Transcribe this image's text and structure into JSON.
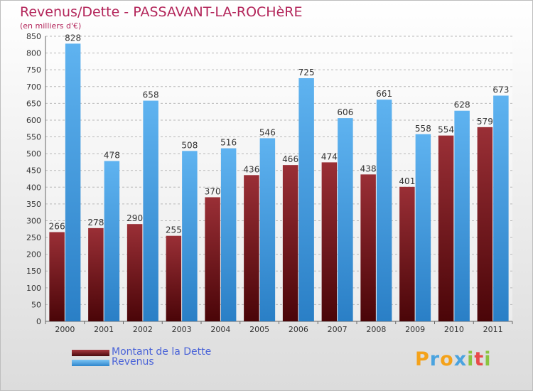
{
  "header": {
    "title": "Revenus/Dette - PASSAVANT-LA-ROCHèRE",
    "subtitle": "(en milliers d'€)"
  },
  "chart_data": {
    "type": "bar",
    "title": "Revenus/Dette - PASSAVANT-LA-ROCHèRE",
    "subtitle": "(en milliers d'€)",
    "categories": [
      "2000",
      "2001",
      "2002",
      "2003",
      "2004",
      "2005",
      "2006",
      "2007",
      "2008",
      "2009",
      "2010",
      "2011"
    ],
    "series": [
      {
        "name": "Montant de la Dette",
        "color": "#7b1a1f",
        "values": [
          266,
          278,
          290,
          255,
          370,
          436,
          466,
          474,
          438,
          401,
          554,
          579
        ]
      },
      {
        "name": "Revenus",
        "color": "#4ba3e8",
        "values": [
          828,
          478,
          658,
          508,
          516,
          546,
          725,
          606,
          661,
          558,
          628,
          673
        ]
      }
    ],
    "y_ticks": [
      0,
      50,
      100,
      150,
      200,
      250,
      300,
      350,
      400,
      450,
      500,
      550,
      600,
      650,
      700,
      750,
      800,
      850
    ],
    "ylim": [
      0,
      850
    ],
    "grid": true,
    "data_labels": true,
    "legend_position": "bottom-left"
  },
  "legend": {
    "items": [
      {
        "label": "Montant de la Dette",
        "color": "#7b1a1f"
      },
      {
        "label": "Revenus",
        "color": "#4ba3e8"
      }
    ]
  },
  "logo": {
    "letters": [
      "P",
      "r",
      "o",
      "x",
      "i",
      "t",
      "i"
    ],
    "colors": [
      "#f4a21a",
      "#4aa3df",
      "#f4a21a",
      "#4aa3df",
      "#8bc43f",
      "#e84a4a",
      "#8bc43f"
    ]
  }
}
